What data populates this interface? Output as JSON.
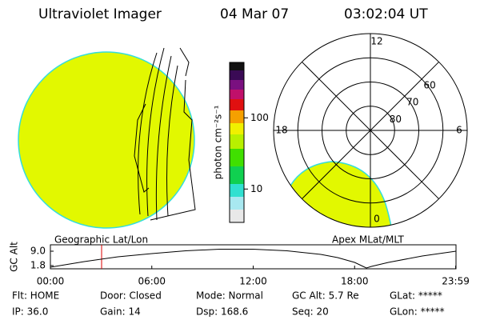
{
  "header": {
    "title": "Ultraviolet Imager",
    "date": "04 Mar 07",
    "time": "03:02:04 UT"
  },
  "colorbar": {
    "label": "photon cm⁻²s⁻¹",
    "scale": "log",
    "range": [
      3.4,
      600
    ],
    "ticks": [
      10,
      100
    ]
  },
  "polar": {
    "rlim": [
      50,
      90
    ],
    "rings": [
      60,
      70,
      80
    ],
    "hours": [
      12,
      6,
      18,
      0
    ]
  },
  "chart_data": {
    "type": "line",
    "ylabel": "GC Alt",
    "left_label": "Geographic Lat/Lon",
    "right_label": "Apex MLat/MLT",
    "x": [
      0,
      2,
      4,
      6,
      8,
      10,
      12,
      14,
      16,
      17,
      18,
      18.5,
      18.7,
      19,
      20,
      22,
      24
    ],
    "series": [
      {
        "name": "GC Alt",
        "color": "#000000",
        "values": [
          1.0,
          3.8,
          6.2,
          7.8,
          9.2,
          10.0,
          10.0,
          9.2,
          7.4,
          5.8,
          3.4,
          1.4,
          0.6,
          1.4,
          3.4,
          6.6,
          9.0
        ]
      }
    ],
    "xlim": [
      0,
      24
    ],
    "ylim": [
      0.2,
      12.2
    ],
    "yticks": [
      {
        "value": 1.8,
        "label": "1.8"
      },
      {
        "value": 9.0,
        "label": "9.0"
      }
    ],
    "xticks": [
      {
        "value": 0,
        "label": "00:00"
      },
      {
        "value": 6,
        "label": "06:00"
      },
      {
        "value": 12,
        "label": "12:00"
      },
      {
        "value": 18,
        "label": "18:00"
      },
      {
        "value": 23.98,
        "label": "23:59"
      }
    ],
    "marker": {
      "value": 3.03,
      "color": "#dd0000"
    }
  },
  "status": [
    [
      "Flt: HOME",
      "Door: Closed",
      "Mode: Normal",
      "GC Alt: 5.7 Re",
      "GLat: *****"
    ],
    [
      "IP: 36.0",
      "Gain: 14",
      "Dsp: 168.6",
      "Seq: 20",
      "GLon: *****"
    ]
  ]
}
